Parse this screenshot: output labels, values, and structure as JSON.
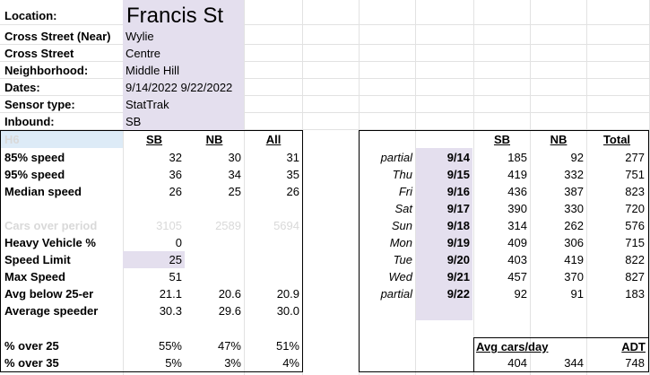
{
  "info": {
    "location_label": "Location:",
    "location": "Francis St",
    "cross_near_label": "Cross Street (Near)",
    "cross_near": "Wylie",
    "cross_label": "Cross Street",
    "cross": "Centre",
    "neighborhood_label": "Neighborhood:",
    "neighborhood": "Middle Hill",
    "dates_label": "Dates:",
    "dates": "9/14/2022 9/22/2022",
    "sensor_label": "Sensor type:",
    "sensor": "StatTrak",
    "inbound_label": "Inbound:",
    "inbound": "SB"
  },
  "stats": {
    "corner": "H6",
    "headers": [
      "SB",
      "NB",
      "All"
    ],
    "rows": [
      {
        "label": "85% speed",
        "sb": "32",
        "nb": "30",
        "all": "31"
      },
      {
        "label": "95% speed",
        "sb": "36",
        "nb": "34",
        "all": "35"
      },
      {
        "label": "Median speed",
        "sb": "26",
        "nb": "25",
        "all": "26"
      },
      {
        "label": "Cars over period",
        "sb": "3105",
        "nb": "2589",
        "all": "5694"
      },
      {
        "label": "Heavy Vehicle %",
        "sb": "0",
        "nb": "",
        "all": ""
      },
      {
        "label": "Speed Limit",
        "sb": "25",
        "nb": "",
        "all": ""
      },
      {
        "label": "Max Speed",
        "sb": "51",
        "nb": "",
        "all": ""
      },
      {
        "label": "Avg below 25-er",
        "sb": "21.1",
        "nb": "20.6",
        "all": "20.9"
      },
      {
        "label": "Average speeder",
        "sb": "30.3",
        "nb": "29.6",
        "all": "30.0"
      },
      {
        "label": "% over 25",
        "sb": "55%",
        "nb": "47%",
        "all": "51%"
      },
      {
        "label": "% over 35",
        "sb": "5%",
        "nb": "3%",
        "all": "4%"
      }
    ]
  },
  "daily": {
    "headers": [
      "SB",
      "NB",
      "Total"
    ],
    "rows": [
      {
        "day": "partial",
        "date": "9/14",
        "sb": "185",
        "nb": "92",
        "total": "277"
      },
      {
        "day": "Thu",
        "date": "9/15",
        "sb": "419",
        "nb": "332",
        "total": "751"
      },
      {
        "day": "Fri",
        "date": "9/16",
        "sb": "436",
        "nb": "387",
        "total": "823"
      },
      {
        "day": "Sat",
        "date": "9/17",
        "sb": "390",
        "nb": "330",
        "total": "720"
      },
      {
        "day": "Sun",
        "date": "9/18",
        "sb": "314",
        "nb": "262",
        "total": "576"
      },
      {
        "day": "Mon",
        "date": "9/19",
        "sb": "409",
        "nb": "306",
        "total": "715"
      },
      {
        "day": "Tue",
        "date": "9/20",
        "sb": "403",
        "nb": "419",
        "total": "822"
      },
      {
        "day": "Wed",
        "date": "9/21",
        "sb": "457",
        "nb": "370",
        "total": "827"
      },
      {
        "day": "partial",
        "date": "9/22",
        "sb": "92",
        "nb": "91",
        "total": "183"
      }
    ],
    "avg_label": "Avg cars/day",
    "adt_label": "ADT",
    "avg_sb": "404",
    "avg_nb": "344",
    "adt": "748"
  }
}
